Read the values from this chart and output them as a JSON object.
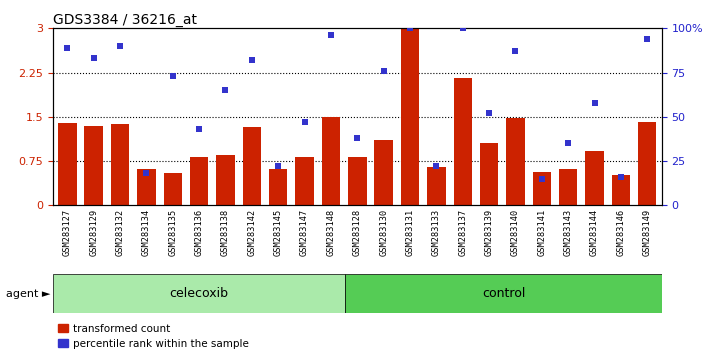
{
  "title": "GDS3384 / 36216_at",
  "samples": [
    "GSM283127",
    "GSM283129",
    "GSM283132",
    "GSM283134",
    "GSM283135",
    "GSM283136",
    "GSM283138",
    "GSM283142",
    "GSM283145",
    "GSM283147",
    "GSM283148",
    "GSM283128",
    "GSM283130",
    "GSM283131",
    "GSM283133",
    "GSM283137",
    "GSM283139",
    "GSM283140",
    "GSM283141",
    "GSM283143",
    "GSM283144",
    "GSM283146",
    "GSM283149"
  ],
  "transformed_count": [
    1.4,
    1.35,
    1.37,
    0.62,
    0.55,
    0.82,
    0.85,
    1.32,
    0.62,
    0.82,
    1.5,
    0.82,
    1.1,
    3.0,
    0.65,
    2.15,
    1.05,
    1.48,
    0.57,
    0.62,
    0.92,
    0.52,
    1.42
  ],
  "percentile_rank": [
    89,
    83,
    90,
    18,
    73,
    43,
    65,
    82,
    22,
    47,
    96,
    38,
    76,
    100,
    22,
    100,
    52,
    87,
    15,
    35,
    58,
    16,
    94
  ],
  "bar_color": "#cc2200",
  "dot_color": "#3333cc",
  "n_celecoxib": 11,
  "n_control": 12,
  "celecoxib_label": "celecoxib",
  "control_label": "control",
  "agent_label": "agent",
  "legend_bar": "transformed count",
  "legend_dot": "percentile rank within the sample",
  "ylim_left": [
    0,
    3
  ],
  "ylim_right": [
    0,
    100
  ],
  "yticks_left": [
    0,
    0.75,
    1.5,
    2.25,
    3
  ],
  "ytick_labels_left": [
    "0",
    "0.75",
    "1.5",
    "2.25",
    "3"
  ],
  "yticks_right": [
    0,
    25,
    50,
    75,
    100
  ],
  "ytick_labels_right": [
    "0",
    "25",
    "50",
    "75",
    "100%"
  ],
  "hlines": [
    0.75,
    1.5,
    2.25
  ],
  "bg_color": "#ffffff",
  "tick_label_bg": "#cccccc",
  "celecoxib_bg": "#aaeaaa",
  "control_bg": "#55cc55",
  "left_axis_color": "#cc2200",
  "right_axis_color": "#2222cc"
}
